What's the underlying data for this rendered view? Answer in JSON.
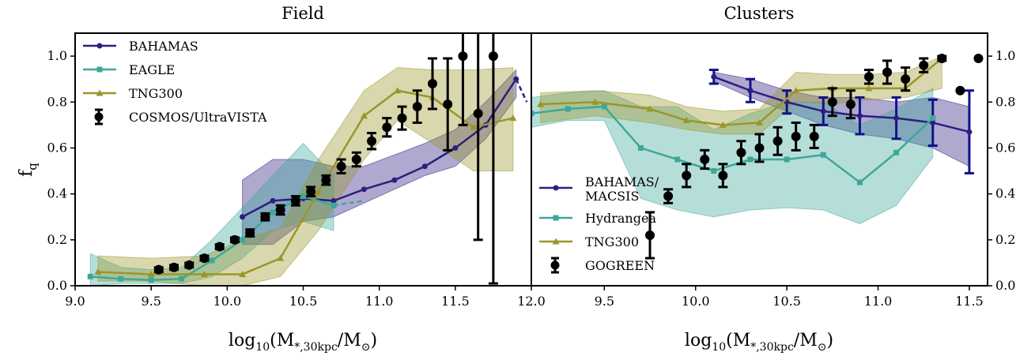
{
  "colors": {
    "bahamas": "#2e1e80",
    "eagle": "#3ea79a",
    "tng": "#9a9628",
    "obs": "#000000",
    "macsis_err": "#12128a"
  },
  "labels": {
    "ylabel": "f_q",
    "xlabel_main": "log",
    "xlabel_sub": "10",
    "xlabel_rest1": "(M",
    "xlabel_sub2": "*,30kpc",
    "xlabel_rest2": "/M",
    "xlabel_sun": "⊙",
    "xlabel_close": ")"
  },
  "chart_data": [
    {
      "type": "line",
      "title": "Field",
      "xlim": [
        9.0,
        12.0
      ],
      "ylim": [
        0.0,
        1.1
      ],
      "xticks": [
        "9.0",
        "9.5",
        "10.0",
        "10.5",
        "11.0",
        "11.5",
        "12.0"
      ],
      "xtick_values": [
        9.0,
        9.5,
        10.0,
        10.5,
        11.0,
        11.5,
        12.0
      ],
      "yticks": [
        "0.0",
        "0.2",
        "0.4",
        "0.6",
        "0.8",
        "1.0"
      ],
      "ytick_values": [
        0.0,
        0.2,
        0.4,
        0.6,
        0.8,
        1.0
      ],
      "legend": "upper-left",
      "series": [
        {
          "name": "BAHAMAS",
          "marker": "circle",
          "color_key": "bahamas",
          "x": [
            10.1,
            10.3,
            10.5,
            10.7,
            10.9,
            11.1,
            11.3,
            11.5,
            11.7,
            11.9
          ],
          "y": [
            0.3,
            0.37,
            0.38,
            0.37,
            0.42,
            0.46,
            0.52,
            0.6,
            0.7,
            0.9
          ],
          "dashed_extension": [
            [
              11.9,
              0.9
            ],
            [
              11.97,
              0.8
            ]
          ],
          "band_x": [
            10.1,
            10.3,
            10.5,
            10.7,
            10.9,
            11.1,
            11.3,
            11.5,
            11.7,
            11.9
          ],
          "band_low": [
            0.18,
            0.18,
            0.28,
            0.3,
            0.36,
            0.42,
            0.48,
            0.52,
            0.64,
            0.82
          ],
          "band_high": [
            0.46,
            0.55,
            0.55,
            0.52,
            0.52,
            0.57,
            0.62,
            0.68,
            0.8,
            0.94
          ]
        },
        {
          "name": "EAGLE",
          "marker": "square",
          "color_key": "eagle",
          "x": [
            9.1,
            9.3,
            9.5,
            9.7,
            9.9,
            10.1,
            10.3,
            10.5,
            10.7
          ],
          "y": [
            0.04,
            0.03,
            0.025,
            0.03,
            0.11,
            0.2,
            0.32,
            0.39,
            0.35
          ],
          "dashed_extension": [
            [
              10.7,
              0.35
            ],
            [
              10.9,
              0.37
            ]
          ],
          "band_x": [
            9.1,
            9.3,
            9.5,
            9.7,
            9.9,
            10.1,
            10.3,
            10.5,
            10.7
          ],
          "band_low": [
            0.0,
            0.01,
            0.01,
            0.01,
            0.04,
            0.12,
            0.24,
            0.28,
            0.24
          ],
          "band_high": [
            0.14,
            0.08,
            0.07,
            0.08,
            0.2,
            0.34,
            0.48,
            0.62,
            0.48
          ]
        },
        {
          "name": "TNG300",
          "marker": "triangle",
          "color_key": "tng",
          "x": [
            9.15,
            9.5,
            9.85,
            10.1,
            10.35,
            10.6,
            10.9,
            11.12,
            11.35,
            11.62,
            11.88
          ],
          "y": [
            0.06,
            0.05,
            0.05,
            0.05,
            0.12,
            0.41,
            0.74,
            0.85,
            0.82,
            0.69,
            0.73
          ],
          "band_x": [
            9.15,
            9.5,
            9.85,
            10.1,
            10.35,
            10.6,
            10.9,
            11.12,
            11.35,
            11.62,
            11.88
          ],
          "band_low": [
            0.02,
            0.02,
            0.0,
            0.0,
            0.04,
            0.24,
            0.55,
            0.72,
            0.62,
            0.5,
            0.5
          ],
          "band_high": [
            0.13,
            0.12,
            0.13,
            0.2,
            0.25,
            0.55,
            0.85,
            0.95,
            0.94,
            0.94,
            0.95
          ]
        },
        {
          "name": "COSMOS/UltraVISTA",
          "marker": "errorbar",
          "color_key": "obs",
          "x": [
            9.55,
            9.65,
            9.75,
            9.85,
            9.95,
            10.05,
            10.15,
            10.25,
            10.35,
            10.45,
            10.55,
            10.65,
            10.75,
            10.85,
            10.95,
            11.05,
            11.15,
            11.25,
            11.35,
            11.45,
            11.55,
            11.65,
            11.75
          ],
          "y": [
            0.07,
            0.08,
            0.09,
            0.12,
            0.17,
            0.2,
            0.23,
            0.3,
            0.33,
            0.37,
            0.41,
            0.46,
            0.52,
            0.55,
            0.63,
            0.69,
            0.73,
            0.78,
            0.88,
            0.79,
            1.0,
            0.75,
            1.0
          ],
          "yerr": [
            0.01,
            0.01,
            0.01,
            0.01,
            0.01,
            0.01,
            0.015,
            0.015,
            0.02,
            0.02,
            0.02,
            0.02,
            0.03,
            0.03,
            0.035,
            0.04,
            0.05,
            0.07,
            0.11,
            0.2,
            0.3,
            0.55,
            0.99
          ]
        }
      ]
    },
    {
      "type": "line",
      "title": "Clusters",
      "xlim": [
        9.1,
        11.6
      ],
      "ylim": [
        0.0,
        1.1
      ],
      "xticks": [
        "9.5",
        "10.0",
        "10.5",
        "11.0",
        "11.5"
      ],
      "xtick_values": [
        9.5,
        10.0,
        10.5,
        11.0,
        11.5
      ],
      "yticks": [
        "0.0",
        "0.2",
        "0.4",
        "0.6",
        "0.8",
        "1.0"
      ],
      "ytick_values": [
        0.0,
        0.2,
        0.4,
        0.6,
        0.8,
        1.0
      ],
      "yaxis_side": "right",
      "legend": "lower-left",
      "series": [
        {
          "name": "BAHAMAS/ MACSIS",
          "marker": "circle",
          "color_key": "bahamas",
          "x": [
            10.1,
            10.3,
            10.5,
            10.7,
            10.9,
            11.1,
            11.3,
            11.5
          ],
          "y": [
            0.91,
            0.85,
            0.8,
            0.76,
            0.74,
            0.73,
            0.71,
            0.67
          ],
          "band_x": [
            10.1,
            10.3,
            10.5,
            10.7,
            10.9,
            11.1,
            11.3,
            11.5
          ],
          "band_low": [
            0.89,
            0.82,
            0.76,
            0.7,
            0.66,
            0.64,
            0.6,
            0.52
          ],
          "band_high": [
            0.93,
            0.9,
            0.85,
            0.82,
            0.82,
            0.8,
            0.82,
            0.78
          ],
          "yerr": [
            0.03,
            0.05,
            0.05,
            0.06,
            0.08,
            0.09,
            0.1,
            0.18
          ]
        },
        {
          "name": "Hydrangea",
          "marker": "square",
          "color_key": "eagle",
          "x": [
            9.1,
            9.3,
            9.5,
            9.7,
            9.9,
            10.1,
            10.3,
            10.5,
            10.7,
            10.9,
            11.1,
            11.3
          ],
          "y": [
            0.75,
            0.77,
            0.78,
            0.6,
            0.55,
            0.5,
            0.55,
            0.55,
            0.57,
            0.45,
            0.58,
            0.73
          ],
          "band_x": [
            9.1,
            9.3,
            9.5,
            9.7,
            9.9,
            10.1,
            10.3,
            10.5,
            10.7,
            10.9,
            11.1,
            11.3
          ],
          "band_low": [
            0.69,
            0.72,
            0.72,
            0.38,
            0.33,
            0.3,
            0.33,
            0.34,
            0.33,
            0.27,
            0.35,
            0.56
          ],
          "band_high": [
            0.82,
            0.84,
            0.85,
            0.78,
            0.78,
            0.68,
            0.75,
            0.8,
            0.8,
            0.7,
            0.77,
            0.86
          ]
        },
        {
          "name": "TNG300",
          "marker": "triangle",
          "color_key": "tng",
          "x": [
            9.15,
            9.45,
            9.75,
            9.95,
            10.15,
            10.35,
            10.55,
            10.75,
            10.95,
            11.15,
            11.35
          ],
          "y": [
            0.79,
            0.8,
            0.77,
            0.72,
            0.7,
            0.71,
            0.85,
            0.86,
            0.86,
            0.86,
            0.99
          ],
          "band_x": [
            9.15,
            9.45,
            9.75,
            9.95,
            10.15,
            10.35,
            10.55,
            10.75,
            10.95,
            11.15,
            11.35
          ],
          "band_low": [
            0.71,
            0.74,
            0.71,
            0.68,
            0.66,
            0.66,
            0.8,
            0.79,
            0.81,
            0.82,
            0.86
          ],
          "band_high": [
            0.84,
            0.85,
            0.83,
            0.78,
            0.76,
            0.77,
            0.93,
            0.92,
            0.92,
            0.93,
            1.0
          ]
        },
        {
          "name": "GOGREEN",
          "marker": "errorbar",
          "color_key": "obs",
          "x": [
            9.75,
            9.85,
            9.95,
            10.05,
            10.15,
            10.25,
            10.35,
            10.45,
            10.55,
            10.65,
            10.75,
            10.85,
            10.95,
            11.05,
            11.15,
            11.25,
            11.35,
            11.45,
            11.55
          ],
          "y": [
            0.22,
            0.39,
            0.48,
            0.55,
            0.48,
            0.58,
            0.6,
            0.63,
            0.65,
            0.65,
            0.8,
            0.79,
            0.91,
            0.93,
            0.9,
            0.96,
            0.99,
            0.85,
            0.99
          ],
          "yerr": [
            0.1,
            0.03,
            0.05,
            0.04,
            0.05,
            0.05,
            0.06,
            0.06,
            0.06,
            0.05,
            0.06,
            0.06,
            0.03,
            0.05,
            0.05,
            0.03,
            0.01,
            0.0,
            0.0
          ]
        }
      ]
    }
  ]
}
